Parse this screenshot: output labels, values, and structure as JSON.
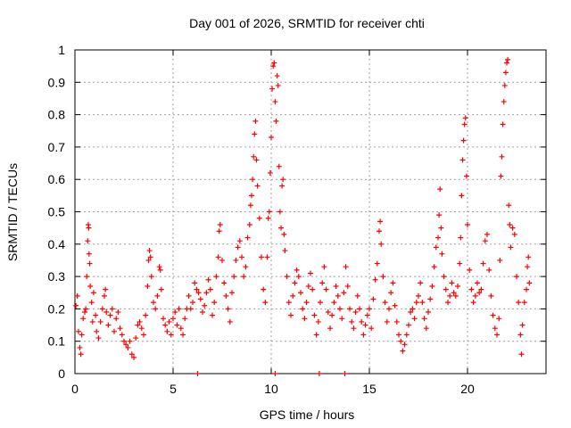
{
  "chart_data": {
    "type": "scatter",
    "title": "Day 001 of 2026, SRMTID for receiver chti",
    "xlabel": "GPS time / hours",
    "ylabel": "SRMTID / TECUs",
    "xlim": [
      0,
      24
    ],
    "ylim": [
      0,
      1
    ],
    "xticks": [
      0,
      5,
      10,
      15,
      20
    ],
    "xtick_labels": [
      "0",
      "5",
      "10",
      "15",
      "20"
    ],
    "yticks": [
      0,
      0.1,
      0.2,
      0.3,
      0.4,
      0.5,
      0.6,
      0.7,
      0.8,
      0.9,
      1
    ],
    "ytick_labels": [
      "0",
      "0.1",
      "0.2",
      "0.3",
      "0.4",
      "0.5",
      "0.6",
      "0.7",
      "0.8",
      "0.9",
      "1"
    ],
    "grid": true,
    "marker": "+",
    "color": "#ff0000",
    "series": [
      {
        "name": "SRMTID",
        "points": [
          [
            0.05,
            0.21
          ],
          [
            0.12,
            0.24
          ],
          [
            0.18,
            0.13
          ],
          [
            0.25,
            0.08
          ],
          [
            0.3,
            0.06
          ],
          [
            0.35,
            0.12
          ],
          [
            0.42,
            0.17
          ],
          [
            0.5,
            0.19
          ],
          [
            0.55,
            0.2
          ],
          [
            0.6,
            0.3
          ],
          [
            0.65,
            0.41
          ],
          [
            0.68,
            0.46
          ],
          [
            0.7,
            0.45
          ],
          [
            0.72,
            0.37
          ],
          [
            0.75,
            0.34
          ],
          [
            0.78,
            0.27
          ],
          [
            0.85,
            0.22
          ],
          [
            0.9,
            0.16
          ],
          [
            0.95,
            0.25
          ],
          [
            1.05,
            0.18
          ],
          [
            1.1,
            0.13
          ],
          [
            1.2,
            0.11
          ],
          [
            1.3,
            0.16
          ],
          [
            1.4,
            0.2
          ],
          [
            1.5,
            0.24
          ],
          [
            1.55,
            0.26
          ],
          [
            1.6,
            0.19
          ],
          [
            1.7,
            0.15
          ],
          [
            1.8,
            0.18
          ],
          [
            1.9,
            0.2
          ],
          [
            2.0,
            0.13
          ],
          [
            2.1,
            0.17
          ],
          [
            2.2,
            0.19
          ],
          [
            2.3,
            0.14
          ],
          [
            2.4,
            0.12
          ],
          [
            2.5,
            0.1
          ],
          [
            2.6,
            0.09
          ],
          [
            2.7,
            0.08
          ],
          [
            2.8,
            0.1
          ],
          [
            2.9,
            0.06
          ],
          [
            3.0,
            0.05
          ],
          [
            3.1,
            0.11
          ],
          [
            3.2,
            0.15
          ],
          [
            3.3,
            0.16
          ],
          [
            3.4,
            0.14
          ],
          [
            3.5,
            0.12
          ],
          [
            3.6,
            0.18
          ],
          [
            3.7,
            0.27
          ],
          [
            3.75,
            0.35
          ],
          [
            3.8,
            0.38
          ],
          [
            3.85,
            0.36
          ],
          [
            3.9,
            0.3
          ],
          [
            4.0,
            0.22
          ],
          [
            4.1,
            0.2
          ],
          [
            4.2,
            0.24
          ],
          [
            4.3,
            0.33
          ],
          [
            4.35,
            0.32
          ],
          [
            4.4,
            0.26
          ],
          [
            4.5,
            0.17
          ],
          [
            4.6,
            0.15
          ],
          [
            4.7,
            0.13
          ],
          [
            4.8,
            0.16
          ],
          [
            4.9,
            0.12
          ],
          [
            5.0,
            0.17
          ],
          [
            5.1,
            0.19
          ],
          [
            5.2,
            0.15
          ],
          [
            5.3,
            0.2
          ],
          [
            5.4,
            0.14
          ],
          [
            5.5,
            0.12
          ],
          [
            5.6,
            0.17
          ],
          [
            5.7,
            0.2
          ],
          [
            5.8,
            0.24
          ],
          [
            5.9,
            0.2
          ],
          [
            6.0,
            0.22
          ],
          [
            6.1,
            0.28
          ],
          [
            6.2,
            0.26
          ],
          [
            6.3,
            0.25
          ],
          [
            6.4,
            0.23
          ],
          [
            6.5,
            0.19
          ],
          [
            6.6,
            0.21
          ],
          [
            6.7,
            0.25
          ],
          [
            6.8,
            0.29
          ],
          [
            6.9,
            0.26
          ],
          [
            7.0,
            0.18
          ],
          [
            7.1,
            0.22
          ],
          [
            7.2,
            0.3
          ],
          [
            7.3,
            0.36
          ],
          [
            7.35,
            0.44
          ],
          [
            7.4,
            0.46
          ],
          [
            7.5,
            0.35
          ],
          [
            7.6,
            0.28
          ],
          [
            7.7,
            0.24
          ],
          [
            7.8,
            0.2
          ],
          [
            7.9,
            0.16
          ],
          [
            8.0,
            0.25
          ],
          [
            8.1,
            0.3
          ],
          [
            8.2,
            0.35
          ],
          [
            8.3,
            0.39
          ],
          [
            8.4,
            0.41
          ],
          [
            8.5,
            0.36
          ],
          [
            8.6,
            0.3
          ],
          [
            8.7,
            0.33
          ],
          [
            8.8,
            0.42
          ],
          [
            8.9,
            0.46
          ],
          [
            8.95,
            0.52
          ],
          [
            9.0,
            0.55
          ],
          [
            9.05,
            0.6
          ],
          [
            9.1,
            0.67
          ],
          [
            9.15,
            0.74
          ],
          [
            9.2,
            0.78
          ],
          [
            9.25,
            0.66
          ],
          [
            9.3,
            0.58
          ],
          [
            9.4,
            0.48
          ],
          [
            9.5,
            0.36
          ],
          [
            9.6,
            0.26
          ],
          [
            9.7,
            0.22
          ],
          [
            9.8,
            0.36
          ],
          [
            9.85,
            0.48
          ],
          [
            9.9,
            0.5
          ],
          [
            9.95,
            0.62
          ],
          [
            10.0,
            0.73
          ],
          [
            10.05,
            0.88
          ],
          [
            10.1,
            0.95
          ],
          [
            10.15,
            0.96
          ],
          [
            10.2,
            0.84
          ],
          [
            10.25,
            0.78
          ],
          [
            10.3,
            0.92
          ],
          [
            10.35,
            0.89
          ],
          [
            10.4,
            0.64
          ],
          [
            10.45,
            0.5
          ],
          [
            10.5,
            0.45
          ],
          [
            10.55,
            0.58
          ],
          [
            10.6,
            0.6
          ],
          [
            10.65,
            0.43
          ],
          [
            10.7,
            0.38
          ],
          [
            10.8,
            0.3
          ],
          [
            10.9,
            0.22
          ],
          [
            11.0,
            0.18
          ],
          [
            11.1,
            0.24
          ],
          [
            11.2,
            0.28
          ],
          [
            11.3,
            0.32
          ],
          [
            11.4,
            0.3
          ],
          [
            11.5,
            0.25
          ],
          [
            11.6,
            0.2
          ],
          [
            11.7,
            0.17
          ],
          [
            11.8,
            0.22
          ],
          [
            11.9,
            0.27
          ],
          [
            12.0,
            0.31
          ],
          [
            12.1,
            0.26
          ],
          [
            12.2,
            0.18
          ],
          [
            12.3,
            0.12
          ],
          [
            12.4,
            0.16
          ],
          [
            12.5,
            0.22
          ],
          [
            12.6,
            0.28
          ],
          [
            12.7,
            0.33
          ],
          [
            12.8,
            0.26
          ],
          [
            12.9,
            0.19
          ],
          [
            13.0,
            0.14
          ],
          [
            13.1,
            0.18
          ],
          [
            13.2,
            0.22
          ],
          [
            13.3,
            0.27
          ],
          [
            13.4,
            0.24
          ],
          [
            13.5,
            0.2
          ],
          [
            13.6,
            0.17
          ],
          [
            13.7,
            0.25
          ],
          [
            13.8,
            0.33
          ],
          [
            13.9,
            0.27
          ],
          [
            14.0,
            0.2
          ],
          [
            14.1,
            0.16
          ],
          [
            14.2,
            0.14
          ],
          [
            14.3,
            0.19
          ],
          [
            14.4,
            0.24
          ],
          [
            14.5,
            0.2
          ],
          [
            14.6,
            0.16
          ],
          [
            14.7,
            0.12
          ],
          [
            14.8,
            0.15
          ],
          [
            14.9,
            0.18
          ],
          [
            15.0,
            0.2
          ],
          [
            15.1,
            0.14
          ],
          [
            15.2,
            0.23
          ],
          [
            15.3,
            0.29
          ],
          [
            15.4,
            0.34
          ],
          [
            15.5,
            0.44
          ],
          [
            15.55,
            0.47
          ],
          [
            15.6,
            0.4
          ],
          [
            15.7,
            0.3
          ],
          [
            15.8,
            0.22
          ],
          [
            15.9,
            0.16
          ],
          [
            16.0,
            0.2
          ],
          [
            16.1,
            0.25
          ],
          [
            16.2,
            0.28
          ],
          [
            16.3,
            0.21
          ],
          [
            16.4,
            0.16
          ],
          [
            16.5,
            0.12
          ],
          [
            16.6,
            0.1
          ],
          [
            16.7,
            0.07
          ],
          [
            16.8,
            0.09
          ],
          [
            16.9,
            0.12
          ],
          [
            17.0,
            0.15
          ],
          [
            17.1,
            0.19
          ],
          [
            17.2,
            0.2
          ],
          [
            17.3,
            0.17
          ],
          [
            17.4,
            0.22
          ],
          [
            17.5,
            0.24
          ],
          [
            17.6,
            0.28
          ],
          [
            17.7,
            0.22
          ],
          [
            17.8,
            0.17
          ],
          [
            17.9,
            0.14
          ],
          [
            18.0,
            0.19
          ],
          [
            18.1,
            0.23
          ],
          [
            18.2,
            0.27
          ],
          [
            18.3,
            0.33
          ],
          [
            18.4,
            0.39
          ],
          [
            18.5,
            0.42
          ],
          [
            18.55,
            0.49
          ],
          [
            18.6,
            0.57
          ],
          [
            18.65,
            0.45
          ],
          [
            18.7,
            0.37
          ],
          [
            18.8,
            0.3
          ],
          [
            18.9,
            0.26
          ],
          [
            19.0,
            0.22
          ],
          [
            19.1,
            0.24
          ],
          [
            19.2,
            0.28
          ],
          [
            19.3,
            0.25
          ],
          [
            19.4,
            0.24
          ],
          [
            19.5,
            0.27
          ],
          [
            19.6,
            0.34
          ],
          [
            19.65,
            0.42
          ],
          [
            19.7,
            0.55
          ],
          [
            19.75,
            0.66
          ],
          [
            19.8,
            0.72
          ],
          [
            19.85,
            0.77
          ],
          [
            19.9,
            0.79
          ],
          [
            19.95,
            0.61
          ],
          [
            20.0,
            0.46
          ],
          [
            20.1,
            0.32
          ],
          [
            20.2,
            0.26
          ],
          [
            20.3,
            0.22
          ],
          [
            20.4,
            0.24
          ],
          [
            20.5,
            0.28
          ],
          [
            20.6,
            0.25
          ],
          [
            20.7,
            0.26
          ],
          [
            20.8,
            0.34
          ],
          [
            20.9,
            0.41
          ],
          [
            21.0,
            0.43
          ],
          [
            21.1,
            0.32
          ],
          [
            21.2,
            0.24
          ],
          [
            21.3,
            0.18
          ],
          [
            21.4,
            0.14
          ],
          [
            21.5,
            0.12
          ],
          [
            21.6,
            0.17
          ],
          [
            21.65,
            0.35
          ],
          [
            21.7,
            0.61
          ],
          [
            21.75,
            0.67
          ],
          [
            21.8,
            0.77
          ],
          [
            21.85,
            0.84
          ],
          [
            21.9,
            0.89
          ],
          [
            21.95,
            0.93
          ],
          [
            22.0,
            0.96
          ],
          [
            22.05,
            0.97
          ],
          [
            22.1,
            0.52
          ],
          [
            22.15,
            0.46
          ],
          [
            22.2,
            0.39
          ],
          [
            22.3,
            0.45
          ],
          [
            22.4,
            0.43
          ],
          [
            22.5,
            0.3
          ],
          [
            22.6,
            0.22
          ],
          [
            22.7,
            0.12
          ],
          [
            22.75,
            0.06
          ],
          [
            22.8,
            0.15
          ],
          [
            22.9,
            0.22
          ],
          [
            23.0,
            0.26
          ],
          [
            23.05,
            0.33
          ],
          [
            23.1,
            0.36
          ],
          [
            23.15,
            0.28
          ],
          [
            6.25,
            0.0
          ],
          [
            10.2,
            0.0
          ],
          [
            12.45,
            0.0
          ],
          [
            13.75,
            0.0
          ]
        ]
      }
    ]
  }
}
